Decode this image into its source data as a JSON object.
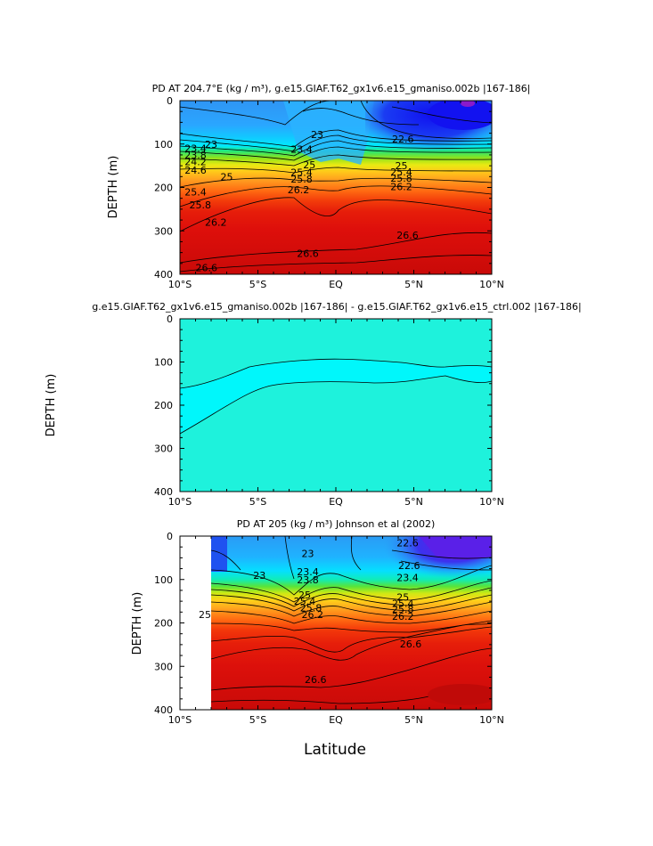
{
  "chart_data": [
    {
      "type": "contour",
      "title": "PD AT 204.7°E (kg / m³), g.e15.GIAF.T62_gx1v6.e15_gmaniso.002b |167-186|",
      "ylabel": "DEPTH (m)",
      "xlabel": "",
      "x_ticks": [
        "10°S",
        "5°S",
        "EQ",
        "5°N",
        "10°N"
      ],
      "y_ticks": [
        "0",
        "100",
        "200",
        "300",
        "400"
      ],
      "xlim": [
        -10,
        10
      ],
      "ylim": [
        0,
        400
      ],
      "contour_labels": [
        {
          "text": "23",
          "lat": -8.0,
          "depth": 100
        },
        {
          "text": "23.4",
          "lat": -9.0,
          "depth": 110
        },
        {
          "text": "23.8",
          "lat": -9.0,
          "depth": 125
        },
        {
          "text": "24.2",
          "lat": -9.0,
          "depth": 140
        },
        {
          "text": "24.6",
          "lat": -9.0,
          "depth": 160
        },
        {
          "text": "25",
          "lat": -7.0,
          "depth": 175
        },
        {
          "text": "25.4",
          "lat": -9.0,
          "depth": 210
        },
        {
          "text": "25.8",
          "lat": -8.7,
          "depth": 240
        },
        {
          "text": "26.2",
          "lat": -7.7,
          "depth": 280
        },
        {
          "text": "26.6",
          "lat": -8.3,
          "depth": 385
        },
        {
          "text": "23",
          "lat": -1.2,
          "depth": 78
        },
        {
          "text": "23.4",
          "lat": -2.2,
          "depth": 112
        },
        {
          "text": "25",
          "lat": -1.7,
          "depth": 148
        },
        {
          "text": "25.4",
          "lat": -2.2,
          "depth": 165
        },
        {
          "text": "25.8",
          "lat": -2.2,
          "depth": 180
        },
        {
          "text": "26.2",
          "lat": -2.4,
          "depth": 205
        },
        {
          "text": "26.6",
          "lat": -1.8,
          "depth": 352
        },
        {
          "text": "22.6",
          "lat": 4.3,
          "depth": 88
        },
        {
          "text": "25",
          "lat": 4.2,
          "depth": 150
        },
        {
          "text": "25.4",
          "lat": 4.2,
          "depth": 164
        },
        {
          "text": "25.8",
          "lat": 4.2,
          "depth": 178
        },
        {
          "text": "26.2",
          "lat": 4.2,
          "depth": 198
        },
        {
          "text": "26.6",
          "lat": 4.6,
          "depth": 310
        }
      ]
    },
    {
      "type": "contour",
      "title": "g.e15.GIAF.T62_gx1v6.e15_gmaniso.002b |167-186| - g.e15.GIAF.T62_gx1v6.e15_ctrl.002 |167-186|",
      "ylabel": "DEPTH (m)",
      "xlabel": "",
      "x_ticks": [
        "10°S",
        "5°S",
        "EQ",
        "5°N",
        "10°N"
      ],
      "y_ticks": [
        "0",
        "100",
        "200",
        "300",
        "400"
      ],
      "xlim": [
        -10,
        10
      ],
      "ylim": [
        0,
        400
      ],
      "contour_labels": []
    },
    {
      "type": "contour",
      "title": "PD AT 205 (kg / m³) Johnson et al (2002)",
      "ylabel": "DEPTH (m)",
      "xlabel": "Latitude",
      "x_ticks": [
        "10°S",
        "5°S",
        "EQ",
        "5°N",
        "10°N"
      ],
      "y_ticks": [
        "0",
        "100",
        "200",
        "300",
        "400"
      ],
      "xlim": [
        -10,
        10
      ],
      "ylim": [
        0,
        400
      ],
      "contour_labels": [
        {
          "text": "23",
          "lat": -4.9,
          "depth": 90
        },
        {
          "text": "23",
          "lat": -1.8,
          "depth": 40
        },
        {
          "text": "23.4",
          "lat": -1.8,
          "depth": 82
        },
        {
          "text": "23.8",
          "lat": -1.8,
          "depth": 100
        },
        {
          "text": "25",
          "lat": -2.0,
          "depth": 135
        },
        {
          "text": "25.4",
          "lat": -2.0,
          "depth": 150
        },
        {
          "text": "25.8",
          "lat": -1.6,
          "depth": 165
        },
        {
          "text": "26.2",
          "lat": -1.5,
          "depth": 180
        },
        {
          "text": "25",
          "lat": -8.4,
          "depth": 180
        },
        {
          "text": "26.6",
          "lat": -1.3,
          "depth": 330
        },
        {
          "text": "22.6",
          "lat": 4.6,
          "depth": 15
        },
        {
          "text": "22.6",
          "lat": 4.7,
          "depth": 68
        },
        {
          "text": "23.4",
          "lat": 4.6,
          "depth": 95
        },
        {
          "text": "25",
          "lat": 4.3,
          "depth": 140
        },
        {
          "text": "25.4",
          "lat": 4.3,
          "depth": 155
        },
        {
          "text": "25.8",
          "lat": 4.3,
          "depth": 168
        },
        {
          "text": "26.2",
          "lat": 4.3,
          "depth": 185
        },
        {
          "text": "26.6",
          "lat": 4.8,
          "depth": 248
        }
      ]
    }
  ]
}
